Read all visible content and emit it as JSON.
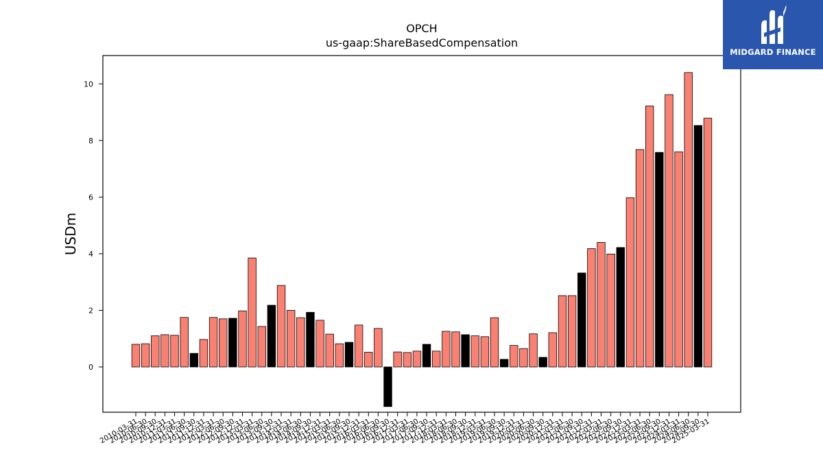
{
  "chart_data": {
    "type": "bar",
    "title": "OPCH",
    "subtitle": "us-gaap:ShareBasedCompensation",
    "ylabel": "USDm",
    "xlabel": "",
    "ylim": [
      -1.6,
      11.0
    ],
    "yticks": [
      0,
      2,
      4,
      6,
      8,
      10
    ],
    "grid": false,
    "colors": {
      "quarter": "#fa8072",
      "annual": "#000000",
      "edge": "#000000"
    },
    "bars": [
      {
        "date": "2010-03-31",
        "value": 0.8,
        "kind": "quarter"
      },
      {
        "date": "2010-06-30",
        "value": 0.82,
        "kind": "quarter"
      },
      {
        "date": "2010-09-30",
        "value": 1.1,
        "kind": "quarter"
      },
      {
        "date": "2010-12-31",
        "value": 1.14,
        "kind": "quarter"
      },
      {
        "date": "2011-03-31",
        "value": 1.12,
        "kind": "quarter"
      },
      {
        "date": "2011-06-30",
        "value": 1.75,
        "kind": "quarter"
      },
      {
        "date": "2011-09-30",
        "value": 0.48,
        "kind": "annual"
      },
      {
        "date": "2011-12-31",
        "value": 0.97,
        "kind": "quarter"
      },
      {
        "date": "2012-03-31",
        "value": 1.75,
        "kind": "quarter"
      },
      {
        "date": "2012-06-30",
        "value": 1.7,
        "kind": "quarter"
      },
      {
        "date": "2012-09-30",
        "value": 1.72,
        "kind": "annual"
      },
      {
        "date": "2012-12-31",
        "value": 1.98,
        "kind": "quarter"
      },
      {
        "date": "2013-03-31",
        "value": 3.85,
        "kind": "quarter"
      },
      {
        "date": "2013-06-30",
        "value": 1.43,
        "kind": "quarter"
      },
      {
        "date": "2013-09-30",
        "value": 2.18,
        "kind": "annual"
      },
      {
        "date": "2013-12-31",
        "value": 2.88,
        "kind": "quarter"
      },
      {
        "date": "2014-03-31",
        "value": 2.0,
        "kind": "quarter"
      },
      {
        "date": "2014-06-30",
        "value": 1.74,
        "kind": "quarter"
      },
      {
        "date": "2014-09-30",
        "value": 1.93,
        "kind": "annual"
      },
      {
        "date": "2014-12-31",
        "value": 1.65,
        "kind": "quarter"
      },
      {
        "date": "2015-03-31",
        "value": 1.16,
        "kind": "quarter"
      },
      {
        "date": "2015-06-30",
        "value": 0.82,
        "kind": "quarter"
      },
      {
        "date": "2015-09-30",
        "value": 0.87,
        "kind": "annual"
      },
      {
        "date": "2015-12-31",
        "value": 1.48,
        "kind": "quarter"
      },
      {
        "date": "2016-03-31",
        "value": 0.52,
        "kind": "quarter"
      },
      {
        "date": "2016-06-30",
        "value": 1.36,
        "kind": "quarter"
      },
      {
        "date": "2016-09-30",
        "value": -1.4,
        "kind": "annual"
      },
      {
        "date": "2016-12-31",
        "value": 0.53,
        "kind": "quarter"
      },
      {
        "date": "2017-03-31",
        "value": 0.51,
        "kind": "quarter"
      },
      {
        "date": "2017-06-30",
        "value": 0.56,
        "kind": "quarter"
      },
      {
        "date": "2017-09-30",
        "value": 0.8,
        "kind": "annual"
      },
      {
        "date": "2017-12-31",
        "value": 0.56,
        "kind": "quarter"
      },
      {
        "date": "2018-03-31",
        "value": 1.26,
        "kind": "quarter"
      },
      {
        "date": "2018-06-30",
        "value": 1.24,
        "kind": "quarter"
      },
      {
        "date": "2018-09-30",
        "value": 1.14,
        "kind": "annual"
      },
      {
        "date": "2018-12-31",
        "value": 1.1,
        "kind": "quarter"
      },
      {
        "date": "2019-03-31",
        "value": 1.07,
        "kind": "quarter"
      },
      {
        "date": "2019-06-30",
        "value": 1.74,
        "kind": "quarter"
      },
      {
        "date": "2019-09-30",
        "value": 0.27,
        "kind": "annual"
      },
      {
        "date": "2019-12-31",
        "value": 0.76,
        "kind": "quarter"
      },
      {
        "date": "2020-03-31",
        "value": 0.65,
        "kind": "quarter"
      },
      {
        "date": "2020-06-30",
        "value": 1.17,
        "kind": "quarter"
      },
      {
        "date": "2020-09-30",
        "value": 0.34,
        "kind": "annual"
      },
      {
        "date": "2020-12-31",
        "value": 1.21,
        "kind": "quarter"
      },
      {
        "date": "2021-03-31",
        "value": 2.52,
        "kind": "quarter"
      },
      {
        "date": "2021-06-30",
        "value": 2.52,
        "kind": "quarter"
      },
      {
        "date": "2021-09-30",
        "value": 3.32,
        "kind": "annual"
      },
      {
        "date": "2021-12-31",
        "value": 4.18,
        "kind": "quarter"
      },
      {
        "date": "2022-03-31",
        "value": 4.4,
        "kind": "quarter"
      },
      {
        "date": "2022-06-30",
        "value": 3.99,
        "kind": "quarter"
      },
      {
        "date": "2022-09-30",
        "value": 4.22,
        "kind": "annual"
      },
      {
        "date": "2022-12-31",
        "value": 5.98,
        "kind": "quarter"
      },
      {
        "date": "2023-03-31",
        "value": 7.68,
        "kind": "quarter"
      },
      {
        "date": "2023-06-30",
        "value": 9.22,
        "kind": "quarter"
      },
      {
        "date": "2023-09-30",
        "value": 7.58,
        "kind": "annual"
      },
      {
        "date": "2023-12-31",
        "value": 9.62,
        "kind": "quarter"
      },
      {
        "date": "2024-03-31",
        "value": 7.6,
        "kind": "quarter"
      },
      {
        "date": "2024-06-30",
        "value": 10.4,
        "kind": "quarter"
      },
      {
        "date": "2024-09-30",
        "value": 8.53,
        "kind": "annual"
      },
      {
        "date": "2025-03-31",
        "value": 8.79,
        "kind": "quarter"
      }
    ]
  },
  "logo": {
    "text": "MIDGARD FINANCE",
    "background": "#2a57ad"
  }
}
